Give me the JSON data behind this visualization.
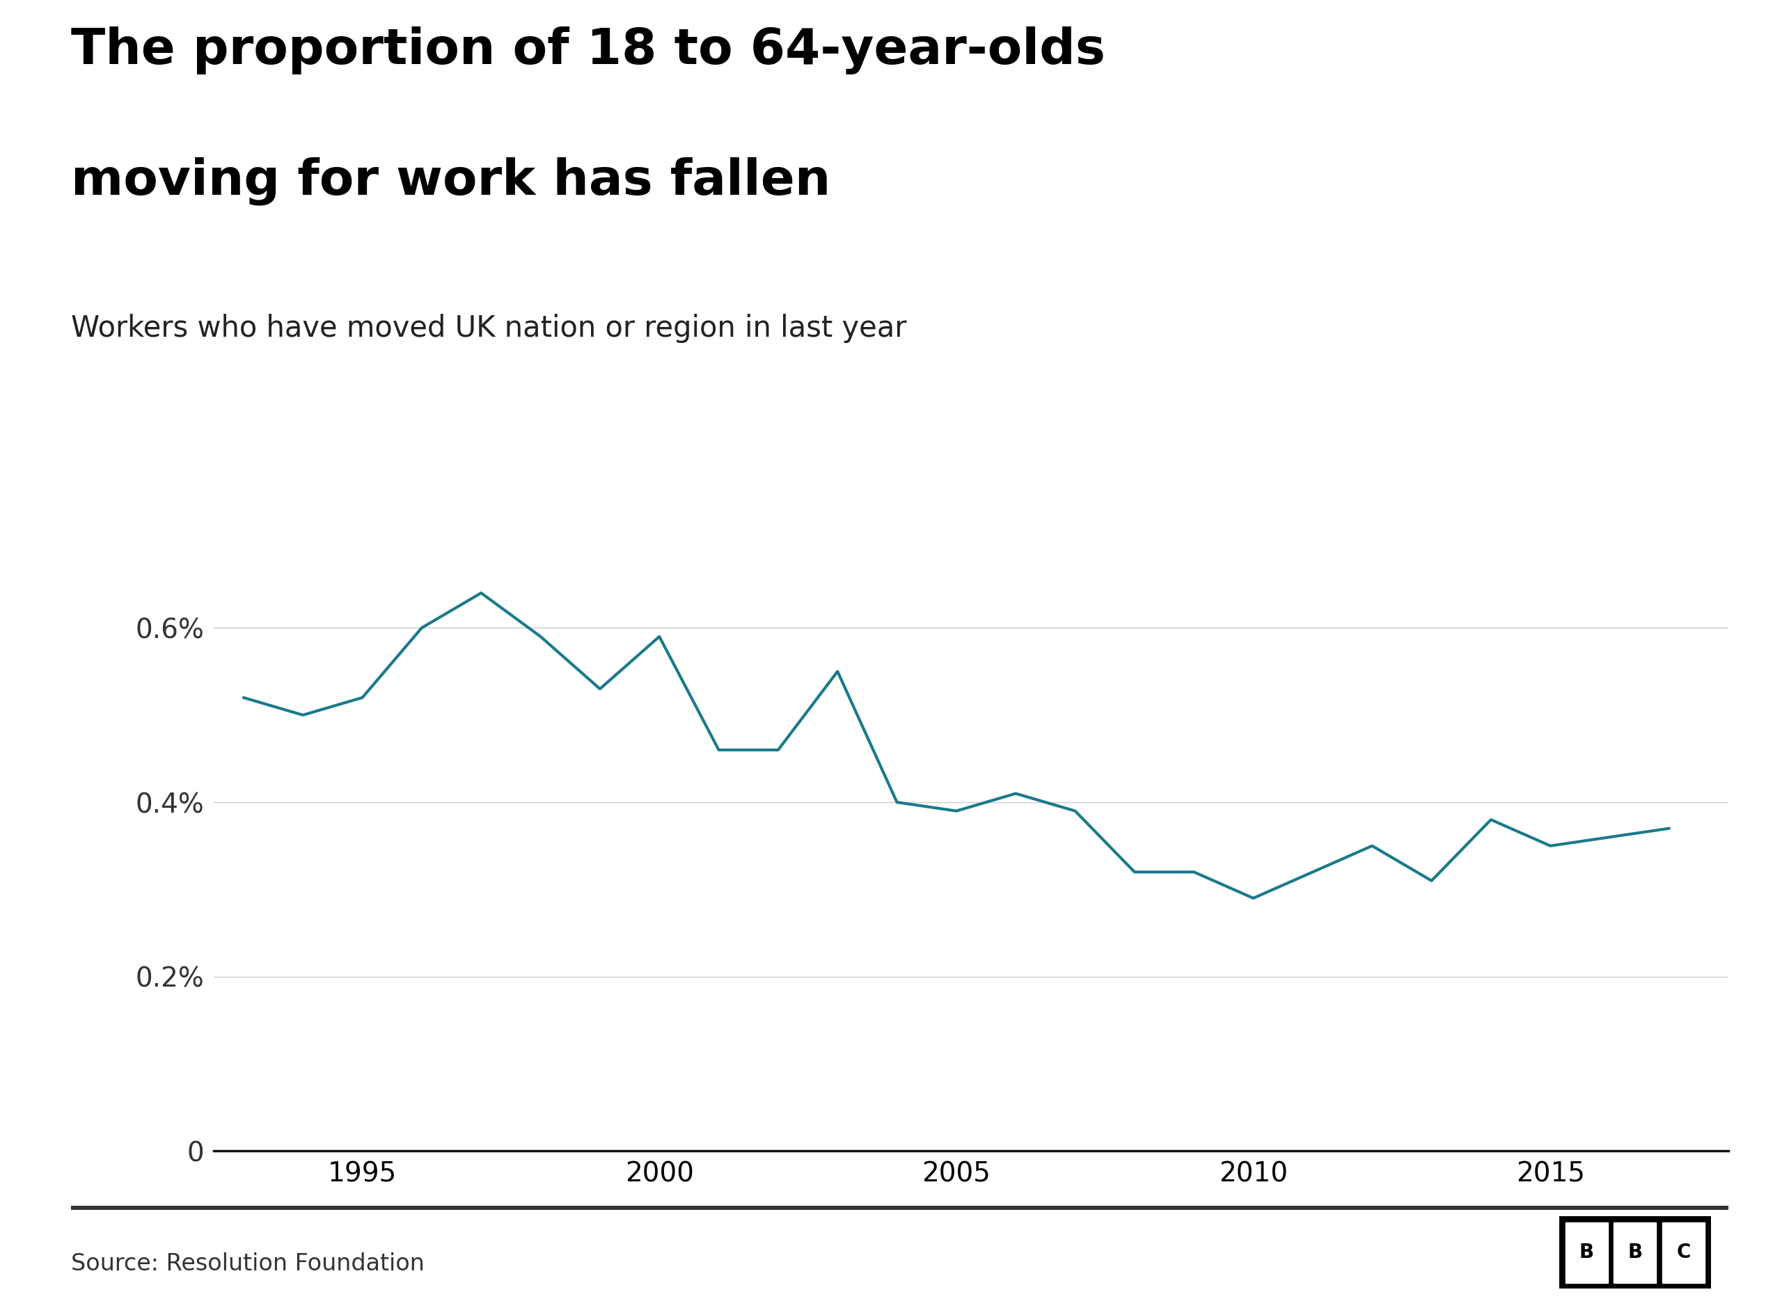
{
  "title_line1": "The proportion of 18 to 64-year-olds",
  "title_line2": "moving for work has fallen",
  "subtitle": "Workers who have moved UK nation or region in last year",
  "source": "Source: Resolution Foundation",
  "bbc_logo": "BBC",
  "years": [
    1993,
    1994,
    1995,
    1996,
    1997,
    1998,
    1999,
    2000,
    2001,
    2002,
    2003,
    2004,
    2005,
    2006,
    2007,
    2008,
    2009,
    2010,
    2011,
    2012,
    2013,
    2014,
    2015,
    2016,
    2017
  ],
  "values": [
    0.0052,
    0.005,
    0.0052,
    0.006,
    0.0064,
    0.0059,
    0.0053,
    0.0059,
    0.0046,
    0.0046,
    0.0055,
    0.004,
    0.0039,
    0.0041,
    0.0039,
    0.0032,
    0.0032,
    0.0029,
    0.0032,
    0.0035,
    0.0031,
    0.0038,
    0.0035,
    0.0036,
    0.0037
  ],
  "line_color": "#1a7a8a",
  "line_width": 3.0,
  "bg_color": "#ffffff",
  "title_color": "#000000",
  "subtitle_color": "#222222",
  "axis_color": "#333333",
  "grid_color": "#cccccc",
  "ylim_max": 0.0075,
  "ytick_vals": [
    0.0,
    0.002,
    0.004,
    0.006
  ],
  "xlim": [
    1992.5,
    2018
  ],
  "xticks": [
    1995,
    2000,
    2005,
    2010,
    2015
  ],
  "title_fontsize": 52,
  "subtitle_fontsize": 30,
  "tick_fontsize": 28,
  "source_fontsize": 24
}
